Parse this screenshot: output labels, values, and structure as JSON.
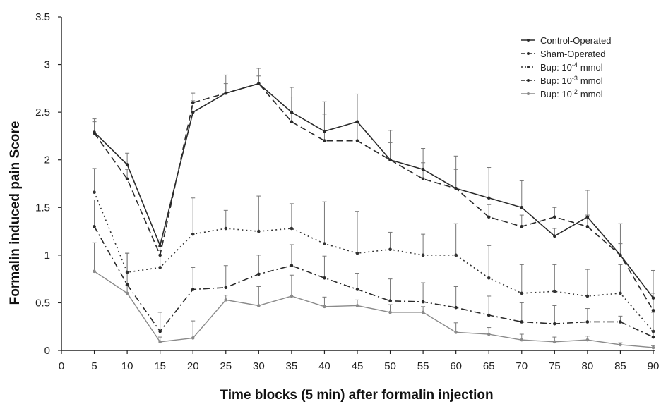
{
  "chart_data": {
    "type": "line",
    "title": "",
    "xlabel": "Time blocks (5 min) after formalin injection",
    "ylabel": "Formalin induced pain Score",
    "xlim": [
      0,
      90
    ],
    "ylim": [
      0,
      3.5
    ],
    "x_ticks": [
      "0",
      "5",
      "10",
      "15",
      "20",
      "25",
      "30",
      "35",
      "40",
      "45",
      "50",
      "55",
      "60",
      "65",
      "70",
      "75",
      "80",
      "85",
      "90"
    ],
    "y_ticks": [
      "0",
      "0.5",
      "1",
      "1.5",
      "2",
      "2.5",
      "3",
      "3.5"
    ],
    "grid": false,
    "legend_position": "top-right",
    "x": [
      5,
      10,
      15,
      20,
      25,
      30,
      35,
      40,
      45,
      50,
      55,
      60,
      65,
      70,
      75,
      80,
      85,
      90
    ],
    "series": [
      {
        "name": "Control-Operated",
        "dash": "solid",
        "color": "#2a2a2a",
        "values": [
          2.29,
          1.95,
          1.1,
          2.5,
          2.7,
          2.8,
          2.5,
          2.3,
          2.4,
          2.0,
          1.9,
          1.7,
          1.6,
          1.5,
          1.2,
          1.4,
          1.0,
          0.55
        ],
        "err": [
          0.14,
          0.12,
          0.06,
          0.12,
          0.19,
          0.16,
          0.26,
          0.31,
          0.29,
          0.31,
          0.22,
          0.34,
          0.32,
          0.28,
          0.08,
          0.28,
          0.33,
          0.29
        ]
      },
      {
        "name": "Sham-Operated",
        "dash": "dashed",
        "color": "#2a2a2a",
        "values": [
          2.28,
          1.8,
          1.0,
          2.6,
          2.7,
          2.8,
          2.4,
          2.2,
          2.2,
          2.0,
          1.8,
          1.7,
          1.4,
          1.3,
          1.4,
          1.3,
          1.0,
          0.42
        ],
        "err": [
          0.12,
          0.1,
          0.05,
          0.1,
          0.1,
          0.08,
          0.26,
          0.28,
          0.2,
          0.18,
          0.17,
          0.2,
          0.13,
          0.12,
          0.1,
          0.12,
          0.12,
          0.18
        ]
      },
      {
        "name": "Bup: 10",
        "sup": "-4",
        "unit": "mmol",
        "dash": "dotted",
        "color": "#333333",
        "values": [
          1.66,
          0.82,
          0.87,
          1.22,
          1.28,
          1.25,
          1.28,
          1.12,
          1.02,
          1.06,
          1.0,
          1.0,
          0.76,
          0.6,
          0.62,
          0.57,
          0.6,
          0.2
        ],
        "err": [
          0.25,
          0.2,
          0.22,
          0.38,
          0.19,
          0.37,
          0.26,
          0.44,
          0.44,
          0.18,
          0.22,
          0.33,
          0.34,
          0.3,
          0.28,
          0.28,
          0.3,
          0.2
        ]
      },
      {
        "name": "Bup: 10",
        "sup": "-3",
        "unit": "mmol",
        "dash": "dashdot",
        "color": "#2a2a2a",
        "values": [
          1.3,
          0.69,
          0.2,
          0.64,
          0.66,
          0.8,
          0.89,
          0.76,
          0.64,
          0.52,
          0.51,
          0.45,
          0.37,
          0.3,
          0.28,
          0.3,
          0.3,
          0.14
        ],
        "err": [
          0.28,
          0.33,
          0.2,
          0.23,
          0.23,
          0.2,
          0.22,
          0.23,
          0.17,
          0.23,
          0.2,
          0.22,
          0.2,
          0.2,
          0.19,
          0.14,
          0.06,
          0.07
        ]
      },
      {
        "name": "Bup: 10",
        "sup": "-2",
        "unit": "mmol",
        "dash": "light",
        "color": "#8a8a8a",
        "values": [
          0.83,
          0.6,
          0.09,
          0.13,
          0.53,
          0.47,
          0.57,
          0.46,
          0.47,
          0.4,
          0.4,
          0.19,
          0.17,
          0.11,
          0.09,
          0.11,
          0.06,
          0.03
        ],
        "err": [
          0.3,
          0.08,
          0.05,
          0.18,
          0.05,
          0.2,
          0.22,
          0.1,
          0.06,
          0.08,
          0.06,
          0.1,
          0.07,
          0.06,
          0.05,
          0.04,
          0.02,
          0.02
        ]
      }
    ]
  }
}
